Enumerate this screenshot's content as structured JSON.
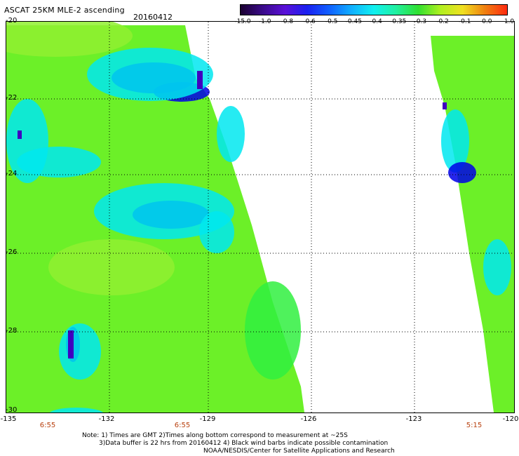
{
  "header": {
    "title": "ASCAT 25KM MLE-2 ascending",
    "date": "20160412"
  },
  "colorbar": {
    "labels": [
      "-15.0",
      "-1.0",
      "-0.8",
      "-0.6",
      "-0.5",
      "-0.45",
      "-0.4",
      "-0.35",
      "-0.3",
      "-0.2",
      "-0.1",
      "0.0",
      "1.0"
    ],
    "colors": [
      "#1a0030",
      "#3a0b8a",
      "#5a10d8",
      "#1a20f0",
      "#1060ff",
      "#10b0ff",
      "#10f0f0",
      "#20f0a0",
      "#30e030",
      "#b0f020",
      "#f0e020",
      "#f08010",
      "#ff2a10"
    ]
  },
  "map": {
    "lat_labels": [
      "-20",
      "-22",
      "-24",
      "-26",
      "-28",
      "-30"
    ],
    "lon_labels": [
      "-135",
      "-132",
      "-129",
      "-126",
      "-123",
      "-120"
    ],
    "time_labels": [
      "6:55",
      "6:55",
      "5:15"
    ],
    "colors": {
      "background": "#ffffff",
      "low": "#0000e8",
      "mid": "#00e8f0",
      "high": "#30f040",
      "highest": "#90f030",
      "edge": "#4000c0",
      "time_label": "#b8400e"
    }
  },
  "footer": {
    "line1": "Note: 1) Times are GMT 2)Times along bottom correspond to measurement at ~25S",
    "line2": "3)Data buffer is 22 hrs from 20160412 4) Black wind barbs indicate possible contamination",
    "line3": "NOAA/NESDIS/Center for Satellite Applications and Research"
  }
}
